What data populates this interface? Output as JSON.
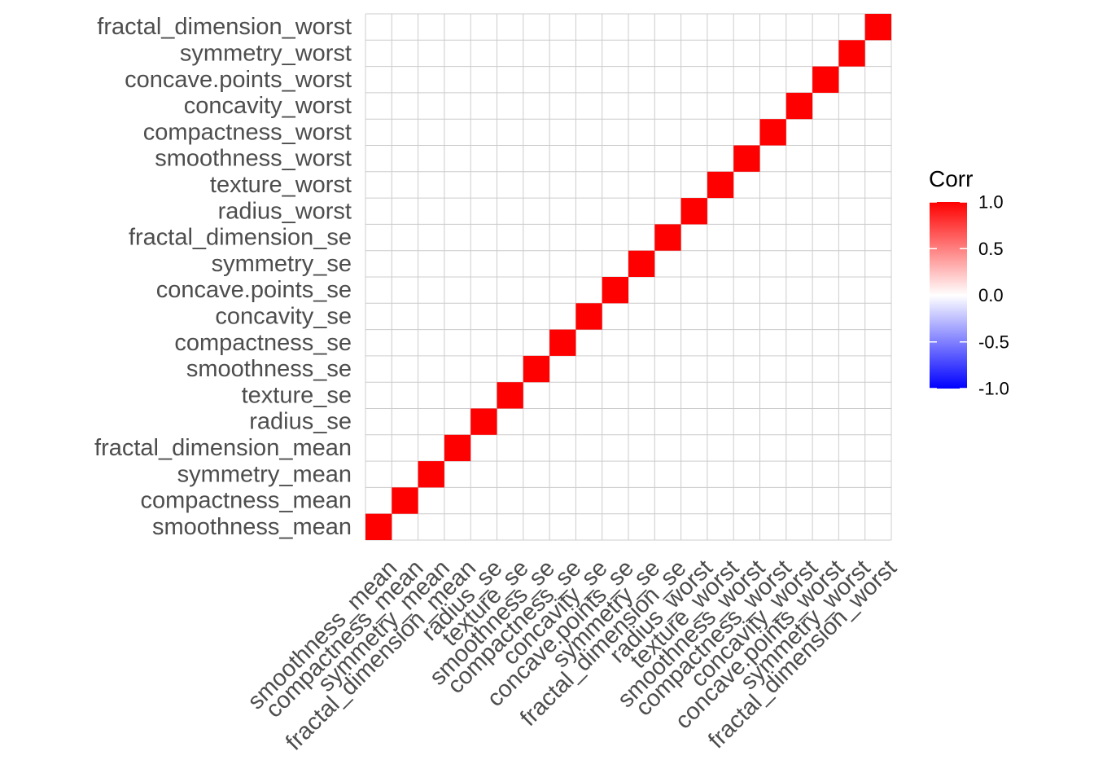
{
  "chart_data": {
    "type": "heatmap",
    "title": "",
    "xlabel": "",
    "ylabel": "",
    "variables": [
      "smoothness_mean",
      "compactness_mean",
      "symmetry_mean",
      "fractal_dimension_mean",
      "radius_se",
      "texture_se",
      "smoothness_se",
      "compactness_se",
      "concavity_se",
      "concave.points_se",
      "symmetry_se",
      "fractal_dimension_se",
      "radius_worst",
      "texture_worst",
      "smoothness_worst",
      "compactness_worst",
      "concavity_worst",
      "concave.points_worst",
      "symmetry_worst",
      "fractal_dimension_worst"
    ],
    "cells": [
      {
        "x": "smoothness_mean",
        "y": "smoothness_mean",
        "value": 1.0
      },
      {
        "x": "compactness_mean",
        "y": "compactness_mean",
        "value": 1.0
      },
      {
        "x": "symmetry_mean",
        "y": "symmetry_mean",
        "value": 1.0
      },
      {
        "x": "fractal_dimension_mean",
        "y": "fractal_dimension_mean",
        "value": 1.0
      },
      {
        "x": "radius_se",
        "y": "radius_se",
        "value": 1.0
      },
      {
        "x": "texture_se",
        "y": "texture_se",
        "value": 1.0
      },
      {
        "x": "smoothness_se",
        "y": "smoothness_se",
        "value": 1.0
      },
      {
        "x": "compactness_se",
        "y": "compactness_se",
        "value": 1.0
      },
      {
        "x": "concavity_se",
        "y": "concavity_se",
        "value": 1.0
      },
      {
        "x": "concave.points_se",
        "y": "concave.points_se",
        "value": 1.0
      },
      {
        "x": "symmetry_se",
        "y": "symmetry_se",
        "value": 1.0
      },
      {
        "x": "fractal_dimension_se",
        "y": "fractal_dimension_se",
        "value": 1.0
      },
      {
        "x": "radius_worst",
        "y": "radius_worst",
        "value": 1.0
      },
      {
        "x": "texture_worst",
        "y": "texture_worst",
        "value": 1.0
      },
      {
        "x": "smoothness_worst",
        "y": "smoothness_worst",
        "value": 1.0
      },
      {
        "x": "compactness_worst",
        "y": "compactness_worst",
        "value": 1.0
      },
      {
        "x": "concavity_worst",
        "y": "concavity_worst",
        "value": 1.0
      },
      {
        "x": "concave.points_worst",
        "y": "concave.points_worst",
        "value": 1.0
      },
      {
        "x": "symmetry_worst",
        "y": "symmetry_worst",
        "value": 1.0
      },
      {
        "x": "fractal_dimension_worst",
        "y": "fractal_dimension_worst",
        "value": 1.0
      }
    ],
    "color_scale": {
      "low": "#0000ff",
      "mid": "#ffffff",
      "high": "#ff0000",
      "limits": [
        -1,
        1
      ]
    },
    "grid": true,
    "legend": {
      "title": "Corr",
      "position": "right",
      "ticks": [
        "1.0",
        "0.5",
        "0.0",
        "-0.5",
        "-1.0"
      ],
      "tick_values": [
        1.0,
        0.5,
        0.0,
        -0.5,
        -1.0
      ]
    }
  }
}
